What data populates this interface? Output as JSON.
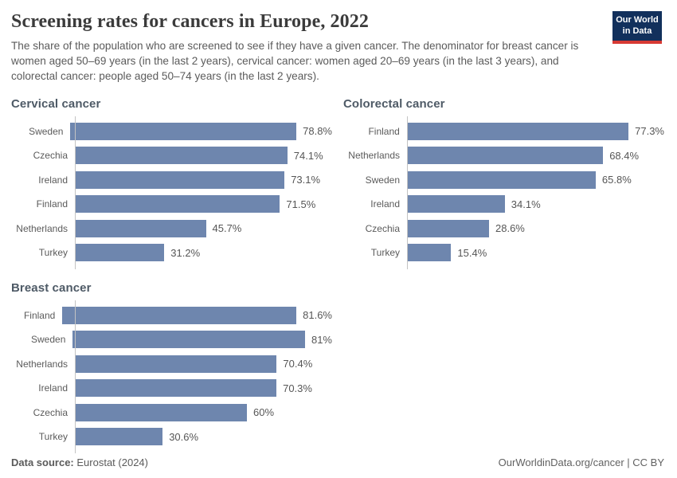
{
  "header": {
    "title": "Screening rates for cancers in Europe, 2022",
    "subtitle": "The share of the population who are screened to see if they have a given cancer. The denominator for breast cancer is women aged 50–69 years (in the last 2 years), cervical cancer: women aged 20–69 years (in the last 3 years), and colorectal cancer: people aged 50–74 years (in the last 2 years).",
    "logo": {
      "line1": "Our World",
      "line2": "in Data"
    }
  },
  "colors": {
    "bar": "#6e86ae",
    "axis": "#c3c3c3",
    "logo_bg": "#12305c",
    "logo_accent": "#d73a34"
  },
  "chart_data": [
    {
      "type": "bar",
      "orientation": "horizontal",
      "title": "Cervical cancer",
      "categories": [
        "Sweden",
        "Czechia",
        "Ireland",
        "Finland",
        "Netherlands",
        "Turkey"
      ],
      "values": [
        78.8,
        74.1,
        73.1,
        71.5,
        45.7,
        31.2
      ],
      "value_labels": [
        "78.8%",
        "74.1%",
        "73.1%",
        "71.5%",
        "45.7%",
        "31.2%"
      ],
      "unit": "%",
      "xlim": [
        0,
        100
      ],
      "grid": false,
      "legend": false
    },
    {
      "type": "bar",
      "orientation": "horizontal",
      "title": "Colorectal cancer",
      "categories": [
        "Finland",
        "Netherlands",
        "Sweden",
        "Ireland",
        "Czechia",
        "Turkey"
      ],
      "values": [
        77.3,
        68.4,
        65.8,
        34.1,
        28.6,
        15.4
      ],
      "value_labels": [
        "77.3%",
        "68.4%",
        "65.8%",
        "34.1%",
        "28.6%",
        "15.4%"
      ],
      "unit": "%",
      "xlim": [
        0,
        100
      ],
      "grid": false,
      "legend": false
    },
    {
      "type": "bar",
      "orientation": "horizontal",
      "title": "Breast cancer",
      "categories": [
        "Finland",
        "Sweden",
        "Netherlands",
        "Ireland",
        "Czechia",
        "Turkey"
      ],
      "values": [
        81.6,
        81,
        70.4,
        70.3,
        60,
        30.6
      ],
      "value_labels": [
        "81.6%",
        "81%",
        "70.4%",
        "70.3%",
        "60%",
        "30.6%"
      ],
      "unit": "%",
      "xlim": [
        0,
        100
      ],
      "grid": false,
      "legend": false
    }
  ],
  "footer": {
    "source_label": "Data source:",
    "source_value": "Eurostat (2024)",
    "right_text": "OurWorldinData.org/cancer | CC BY"
  }
}
